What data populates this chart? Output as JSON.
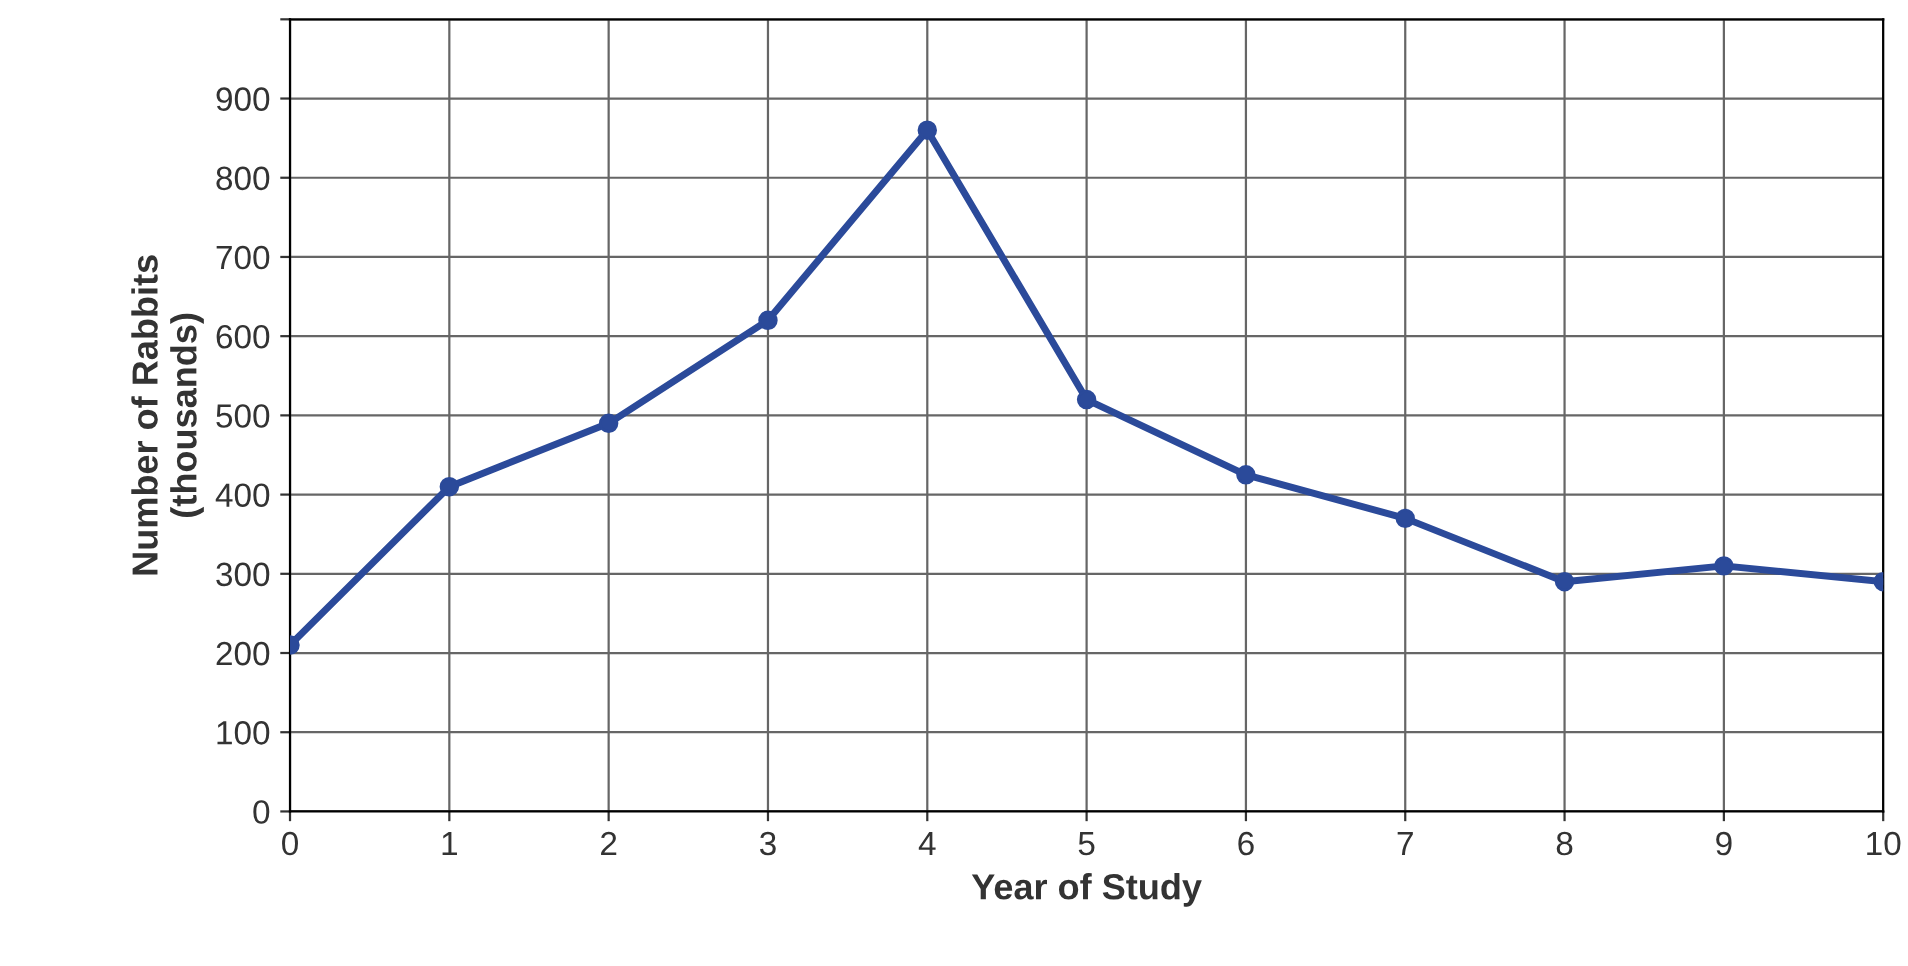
{
  "chart_data": {
    "type": "line",
    "xlabel": "Year of Study",
    "ylabel": "Number of Rabbits\n(thousands)",
    "x": [
      0,
      1,
      2,
      3,
      4,
      5,
      6,
      7,
      8,
      9,
      10
    ],
    "series": [
      {
        "color": "#2b4a9a",
        "values": [
          210,
          410,
          490,
          620,
          860,
          520,
          425,
          370,
          290,
          310,
          290
        ]
      }
    ],
    "xlim": [
      0,
      10
    ],
    "xticks": [
      0,
      1,
      2,
      3,
      4,
      5,
      6,
      7,
      8,
      9,
      10
    ],
    "ylim": [
      0,
      1000
    ],
    "yticks": [
      0,
      100,
      200,
      300,
      400,
      500,
      600,
      700,
      800,
      900,
      {
        "value": 1000,
        "label": null
      }
    ],
    "grid": true,
    "marker": "circle",
    "line_style": "solid"
  }
}
